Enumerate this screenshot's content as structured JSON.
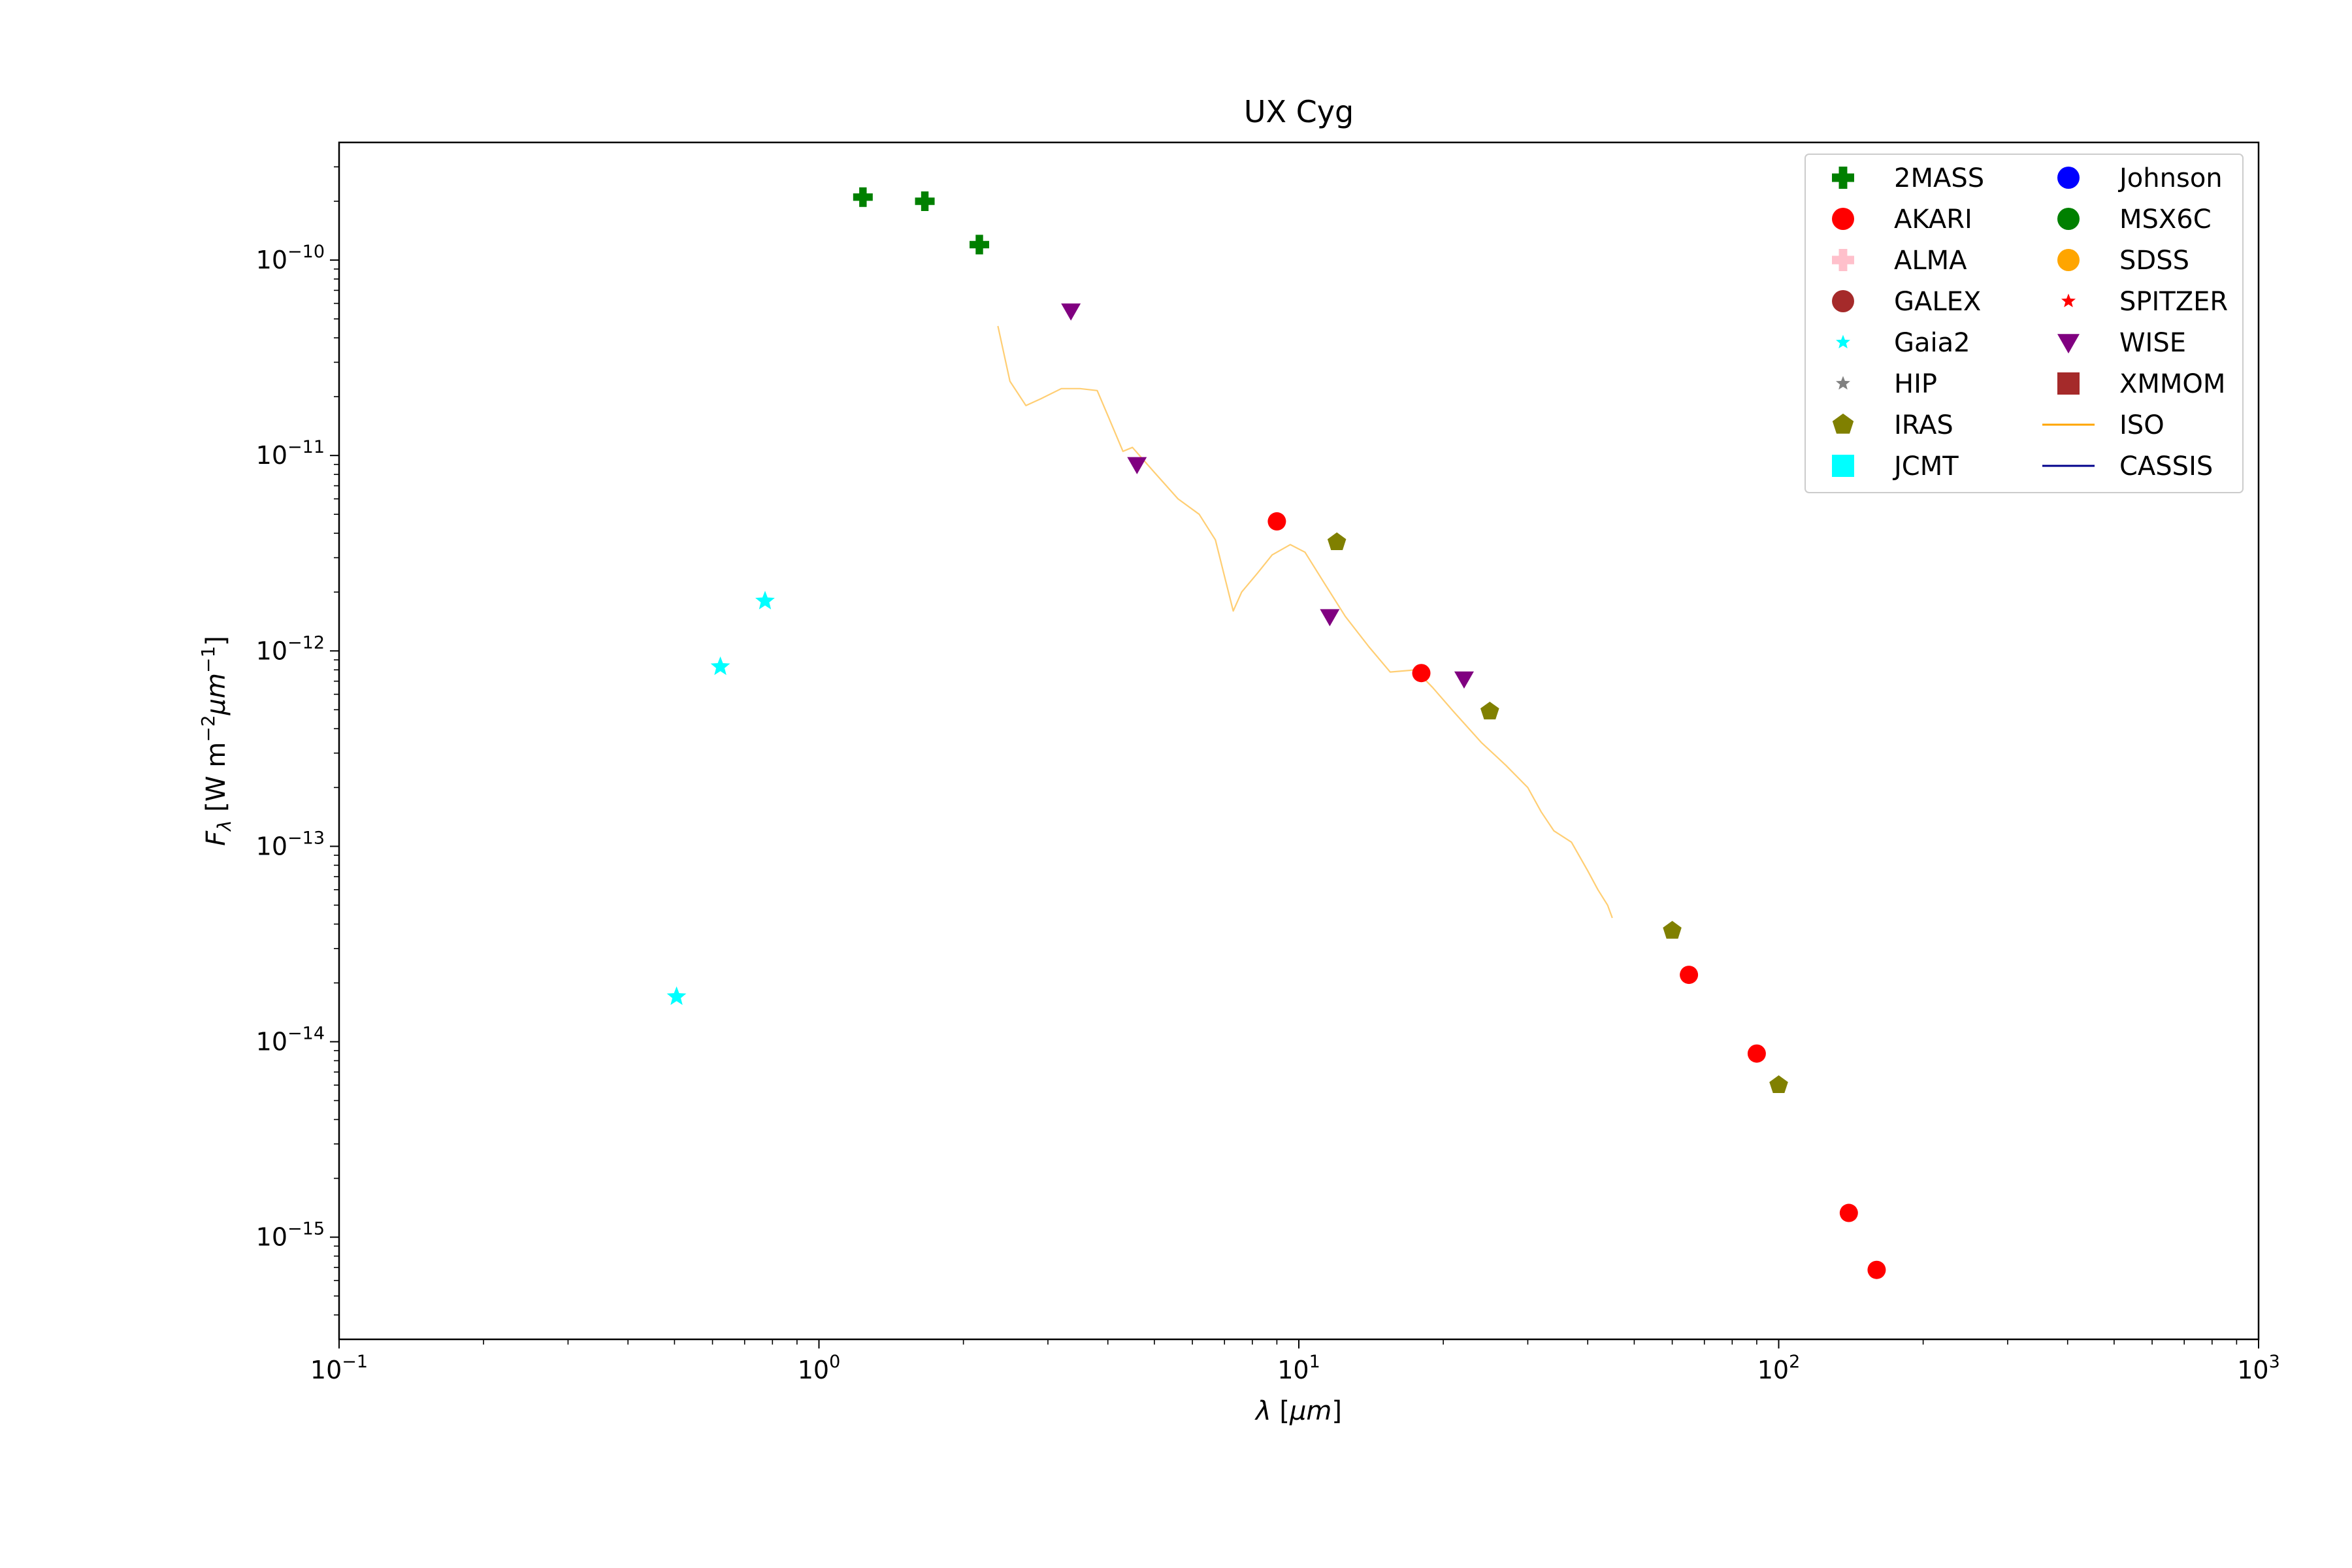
{
  "chart_data": {
    "type": "scatter",
    "title": "UX Cyg",
    "xlabel": "λ [μm]",
    "ylabel": "F_λ [W m⁻² μm⁻¹]",
    "xscale": "log",
    "yscale": "log",
    "xlim": [
      0.1,
      1000
    ],
    "ylim": [
      3e-16,
      4e-10
    ],
    "grid": false,
    "legend_position": "top-right",
    "xticks": [
      {
        "value": 0.1,
        "base": "10",
        "exp": "−1"
      },
      {
        "value": 1,
        "base": "10",
        "exp": "0"
      },
      {
        "value": 10,
        "base": "10",
        "exp": "1"
      },
      {
        "value": 100,
        "base": "10",
        "exp": "2"
      },
      {
        "value": 1000,
        "base": "10",
        "exp": "3"
      }
    ],
    "yticks": [
      {
        "value": 1e-15,
        "base": "10",
        "exp": "−15"
      },
      {
        "value": 1e-14,
        "base": "10",
        "exp": "−14"
      },
      {
        "value": 1e-13,
        "base": "10",
        "exp": "−13"
      },
      {
        "value": 1e-12,
        "base": "10",
        "exp": "−12"
      },
      {
        "value": 1e-11,
        "base": "10",
        "exp": "−11"
      },
      {
        "value": 1e-10,
        "base": "10",
        "exp": "−10"
      }
    ],
    "series": [
      {
        "name": "2MASS",
        "marker": "plus",
        "color": "#008000",
        "points": [
          [
            1.235,
            2.1e-10
          ],
          [
            1.662,
            2e-10
          ],
          [
            2.159,
            1.2e-10
          ]
        ]
      },
      {
        "name": "AKARI",
        "marker": "circle",
        "color": "#ff0000",
        "points": [
          [
            9.0,
            4.6e-12
          ],
          [
            18.0,
            7.7e-13
          ],
          [
            65.0,
            2.2e-14
          ],
          [
            90.0,
            8.7e-15
          ],
          [
            140.0,
            1.33e-15
          ],
          [
            160.0,
            6.8e-16
          ]
        ]
      },
      {
        "name": "ALMA",
        "marker": "plus",
        "color": "#ffc0cb",
        "points": []
      },
      {
        "name": "GALEX",
        "marker": "circle",
        "color": "#a52a2a",
        "points": []
      },
      {
        "name": "Gaia2",
        "marker": "star",
        "color": "#00ffff",
        "points": [
          [
            0.505,
            1.7e-14
          ],
          [
            0.623,
            8.3e-13
          ],
          [
            0.772,
            1.8e-12
          ]
        ]
      },
      {
        "name": "HIP",
        "marker": "star",
        "color": "#808080",
        "points": []
      },
      {
        "name": "IRAS",
        "marker": "pentagon",
        "color": "#808000",
        "points": [
          [
            12.0,
            3.6e-12
          ],
          [
            25.0,
            4.9e-13
          ],
          [
            60.0,
            3.7e-14
          ],
          [
            100.0,
            6e-15
          ]
        ]
      },
      {
        "name": "JCMT",
        "marker": "square",
        "color": "#00ffff",
        "points": []
      },
      {
        "name": "Johnson",
        "marker": "circle",
        "color": "#0000ff",
        "points": []
      },
      {
        "name": "MSX6C",
        "marker": "circle",
        "color": "#008000",
        "points": []
      },
      {
        "name": "SDSS",
        "marker": "circle",
        "color": "#ffa500",
        "points": []
      },
      {
        "name": "SPITZER",
        "marker": "star",
        "color": "#ff0000",
        "points": []
      },
      {
        "name": "WISE",
        "marker": "triangle-down",
        "color": "#800080",
        "points": [
          [
            3.35,
            5.5e-11
          ],
          [
            4.6,
            9e-12
          ],
          [
            11.6,
            1.5e-12
          ],
          [
            22.1,
            7.2e-13
          ]
        ]
      },
      {
        "name": "XMMOM",
        "marker": "square",
        "color": "#a52a2a",
        "points": []
      },
      {
        "name": "ISO",
        "marker": "line",
        "color": "#ffa500",
        "points": [
          [
            2.36,
            4.6e-11
          ],
          [
            2.5,
            2.4e-11
          ],
          [
            2.7,
            1.8e-11
          ],
          [
            2.9,
            1.95e-11
          ],
          [
            3.2,
            2.2e-11
          ],
          [
            3.5,
            2.2e-11
          ],
          [
            3.8,
            2.15e-11
          ],
          [
            4.0,
            1.6e-11
          ],
          [
            4.3,
            1.05e-11
          ],
          [
            4.5,
            1.1e-11
          ],
          [
            5.0,
            8.2e-12
          ],
          [
            5.6,
            6e-12
          ],
          [
            6.2,
            5e-12
          ],
          [
            6.7,
            3.7e-12
          ],
          [
            7.1,
            2.1e-12
          ],
          [
            7.3,
            1.6e-12
          ],
          [
            7.6,
            2e-12
          ],
          [
            8.2,
            2.5e-12
          ],
          [
            8.8,
            3.1e-12
          ],
          [
            9.6,
            3.5e-12
          ],
          [
            10.3,
            3.2e-12
          ],
          [
            11.2,
            2.3e-12
          ],
          [
            12.5,
            1.5e-12
          ],
          [
            14.0,
            1.05e-12
          ],
          [
            15.5,
            7.8e-13
          ],
          [
            17.5,
            8e-13
          ],
          [
            19.0,
            6.5e-13
          ],
          [
            21.0,
            4.9e-13
          ],
          [
            24.0,
            3.4e-13
          ],
          [
            27.0,
            2.6e-13
          ],
          [
            30.0,
            2e-13
          ],
          [
            32.0,
            1.5e-13
          ],
          [
            34.0,
            1.2e-13
          ],
          [
            37.0,
            1.05e-13
          ],
          [
            40.0,
            7.5e-14
          ],
          [
            42.0,
            6e-14
          ],
          [
            44.0,
            5e-14
          ],
          [
            45.0,
            4.3e-14
          ]
        ]
      },
      {
        "name": "CASSIS",
        "marker": "line",
        "color": "#00008b",
        "points": []
      }
    ]
  }
}
